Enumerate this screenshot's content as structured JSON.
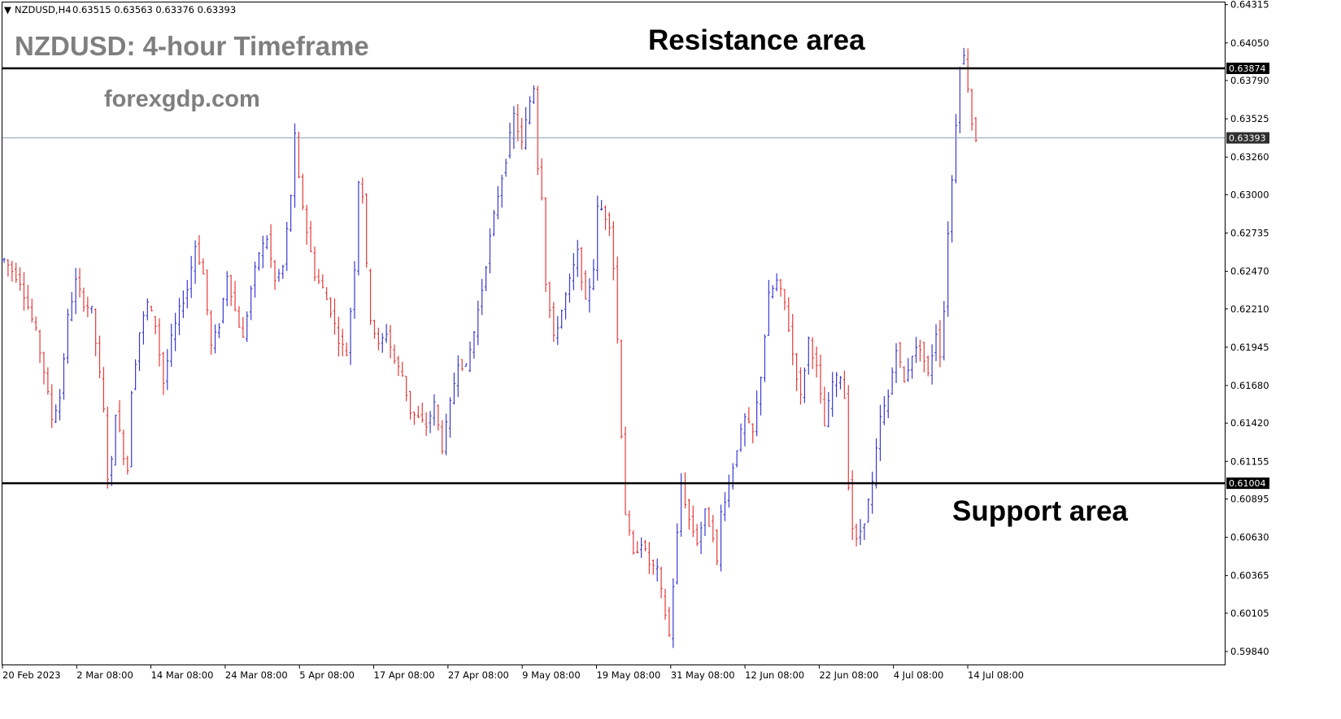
{
  "header": {
    "symbol": "NZDUSD,H4",
    "ohlc": "0.63515 0.63563 0.63376 0.63393"
  },
  "title": "NZDUSD: 4-hour Timeframe",
  "site": "forexgdp.com",
  "colors": {
    "bull": "#3a3ad0",
    "bear": "#e53a3a",
    "level_line": "#000000",
    "current_line": "#8fa3b8",
    "tag_black": "#000000",
    "tag_current": "#2f2f2f"
  },
  "chart_data": {
    "type": "candlestick",
    "symbol": "NZDUSD",
    "timeframe": "H4",
    "y_ticks": [
      "0.64315",
      "0.64050",
      "0.63790",
      "0.63525",
      "0.63260",
      "0.63000",
      "0.62735",
      "0.62470",
      "0.62210",
      "0.61945",
      "0.61680",
      "0.61420",
      "0.61155",
      "0.60895",
      "0.60630",
      "0.60365",
      "0.60105",
      "0.59840"
    ],
    "ylim": [
      0.5975,
      0.6433
    ],
    "x_ticks": [
      "20 Feb 2023",
      "2 Mar 08:00",
      "14 Mar 08:00",
      "24 Mar 08:00",
      "5 Apr 08:00",
      "17 Apr 08:00",
      "27 Apr 08:00",
      "9 May 08:00",
      "19 May 08:00",
      "31 May 08:00",
      "12 Jun 08:00",
      "22 Jun 08:00",
      "4 Jul 08:00",
      "14 Jul 08:00"
    ],
    "levels": [
      {
        "label": "Resistance area",
        "value": 0.63874,
        "tag": "0.63874"
      },
      {
        "label": "Support area",
        "value": 0.61004,
        "tag": "0.61004"
      }
    ],
    "current_price": {
      "value": 0.63393,
      "tag": "0.63393"
    },
    "path": [
      [
        0,
        0.6255
      ],
      [
        4,
        0.624
      ],
      [
        8,
        0.6205
      ],
      [
        10,
        0.6178
      ],
      [
        12,
        0.6145
      ],
      [
        14,
        0.616
      ],
      [
        16,
        0.6215
      ],
      [
        18,
        0.624
      ],
      [
        20,
        0.6225
      ],
      [
        22,
        0.622
      ],
      [
        24,
        0.6175
      ],
      [
        25,
        0.615
      ],
      [
        26,
        0.6105
      ],
      [
        27,
        0.6115
      ],
      [
        28,
        0.615
      ],
      [
        30,
        0.612
      ],
      [
        31,
        0.611
      ],
      [
        32,
        0.6165
      ],
      [
        34,
        0.6205
      ],
      [
        36,
        0.6225
      ],
      [
        38,
        0.621
      ],
      [
        40,
        0.617
      ],
      [
        42,
        0.62
      ],
      [
        44,
        0.622
      ],
      [
        46,
        0.6235
      ],
      [
        48,
        0.6265
      ],
      [
        50,
        0.6245
      ],
      [
        52,
        0.6195
      ],
      [
        54,
        0.621
      ],
      [
        56,
        0.6245
      ],
      [
        58,
        0.622
      ],
      [
        60,
        0.62
      ],
      [
        62,
        0.6235
      ],
      [
        64,
        0.626
      ],
      [
        66,
        0.627
      ],
      [
        68,
        0.624
      ],
      [
        70,
        0.625
      ],
      [
        72,
        0.63
      ],
      [
        73,
        0.634
      ],
      [
        74,
        0.631
      ],
      [
        76,
        0.6275
      ],
      [
        78,
        0.6245
      ],
      [
        80,
        0.6235
      ],
      [
        82,
        0.622
      ],
      [
        84,
        0.62
      ],
      [
        86,
        0.619
      ],
      [
        88,
        0.625
      ],
      [
        89,
        0.631
      ],
      [
        90,
        0.63
      ],
      [
        91,
        0.625
      ],
      [
        92,
        0.6215
      ],
      [
        94,
        0.6195
      ],
      [
        96,
        0.6205
      ],
      [
        98,
        0.6185
      ],
      [
        100,
        0.6175
      ],
      [
        102,
        0.615
      ],
      [
        104,
        0.6145
      ],
      [
        106,
        0.614
      ],
      [
        108,
        0.6155
      ],
      [
        110,
        0.6125
      ],
      [
        112,
        0.6155
      ],
      [
        114,
        0.6185
      ],
      [
        116,
        0.618
      ],
      [
        118,
        0.6205
      ],
      [
        120,
        0.6235
      ],
      [
        122,
        0.627
      ],
      [
        124,
        0.63
      ],
      [
        126,
        0.6325
      ],
      [
        128,
        0.6355
      ],
      [
        130,
        0.6335
      ],
      [
        132,
        0.6365
      ],
      [
        133,
        0.6375
      ],
      [
        134,
        0.632
      ],
      [
        135,
        0.63
      ],
      [
        136,
        0.624
      ],
      [
        138,
        0.62
      ],
      [
        140,
        0.622
      ],
      [
        142,
        0.624
      ],
      [
        144,
        0.626
      ],
      [
        146,
        0.6225
      ],
      [
        148,
        0.625
      ],
      [
        149,
        0.629
      ],
      [
        150,
        0.629
      ],
      [
        152,
        0.628
      ],
      [
        153,
        0.625
      ],
      [
        154,
        0.62
      ],
      [
        155,
        0.6135
      ],
      [
        156,
        0.608
      ],
      [
        158,
        0.605
      ],
      [
        160,
        0.606
      ],
      [
        162,
        0.6045
      ],
      [
        164,
        0.604
      ],
      [
        166,
        0.601
      ],
      [
        167,
        0.5995
      ],
      [
        168,
        0.603
      ],
      [
        169,
        0.6065
      ],
      [
        170,
        0.61
      ],
      [
        172,
        0.6075
      ],
      [
        174,
        0.606
      ],
      [
        176,
        0.608
      ],
      [
        178,
        0.6065
      ],
      [
        179,
        0.6045
      ],
      [
        180,
        0.608
      ],
      [
        182,
        0.61
      ],
      [
        184,
        0.6125
      ],
      [
        186,
        0.6145
      ],
      [
        188,
        0.6135
      ],
      [
        190,
        0.6175
      ],
      [
        192,
        0.623
      ],
      [
        194,
        0.624
      ],
      [
        196,
        0.6225
      ],
      [
        198,
        0.619
      ],
      [
        200,
        0.616
      ],
      [
        202,
        0.62
      ],
      [
        204,
        0.618
      ],
      [
        206,
        0.614
      ],
      [
        208,
        0.617
      ],
      [
        210,
        0.6175
      ],
      [
        211,
        0.616
      ],
      [
        212,
        0.61
      ],
      [
        213,
        0.607
      ],
      [
        214,
        0.606
      ],
      [
        216,
        0.6075
      ],
      [
        218,
        0.61
      ],
      [
        220,
        0.6145
      ],
      [
        222,
        0.616
      ],
      [
        224,
        0.6195
      ],
      [
        226,
        0.617
      ],
      [
        228,
        0.619
      ],
      [
        230,
        0.6195
      ],
      [
        232,
        0.6175
      ],
      [
        234,
        0.6205
      ],
      [
        235,
        0.619
      ],
      [
        236,
        0.622
      ],
      [
        237,
        0.6275
      ],
      [
        238,
        0.631
      ],
      [
        239,
        0.635
      ],
      [
        240,
        0.639
      ],
      [
        241,
        0.6395
      ],
      [
        242,
        0.6375
      ],
      [
        243,
        0.635
      ],
      [
        244,
        0.6339
      ]
    ]
  }
}
